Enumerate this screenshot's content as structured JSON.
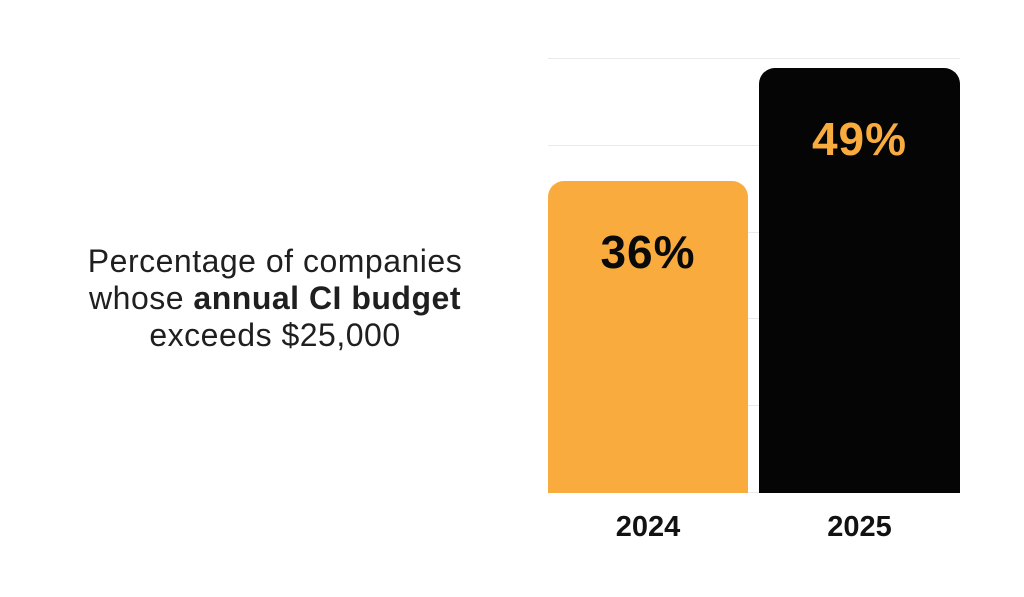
{
  "intro": {
    "line1": "Percentage of companies",
    "line2_regular": "whose ",
    "line2_bold": "annual CI budget",
    "line3": "exceeds $25,000",
    "text_color": "#1f1f1f"
  },
  "chart_data": {
    "type": "bar",
    "title": "Percentage of companies whose annual CI budget exceeds $25,000",
    "categories": [
      "2024",
      "2025"
    ],
    "values": [
      36,
      49
    ],
    "value_labels": [
      "36%",
      "49%"
    ],
    "xlabel": "",
    "ylabel": "",
    "ylim": [
      0,
      50
    ],
    "gridline_values": [
      0,
      10,
      20,
      30,
      40,
      50
    ],
    "grid_on": true,
    "legend": "none",
    "bar_colors": [
      "#F9AC3D",
      "#050505"
    ],
    "value_label_colors": [
      "#0a0a0a",
      "#F9AC3D"
    ],
    "grid_color": "#eaeaea",
    "tick_label_color": "#121212"
  }
}
